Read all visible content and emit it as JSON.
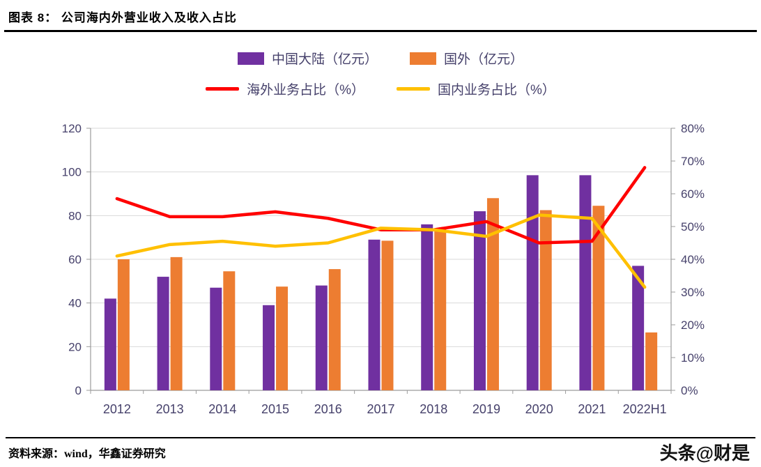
{
  "header": {
    "title": "图表 8：  公司海内外营业收入及收入占比"
  },
  "footer": {
    "source": "资料来源：wind，华鑫证券研究",
    "watermark": "头条@财是"
  },
  "chart_data": {
    "type": "bar",
    "subtype": "grouped-bars-with-lines",
    "categories": [
      "2012",
      "2013",
      "2014",
      "2015",
      "2016",
      "2017",
      "2018",
      "2019",
      "2020",
      "2021",
      "2022H1"
    ],
    "bar_series": [
      {
        "name": "中国大陆（亿元）",
        "color": "#7030A0",
        "axis": "left",
        "values": [
          42,
          52,
          47,
          39,
          48,
          69,
          76,
          82,
          98.5,
          98.5,
          57
        ]
      },
      {
        "name": "国外（亿元）",
        "color": "#ED7D31",
        "axis": "left",
        "values": [
          60,
          61,
          54.5,
          47.5,
          55.5,
          68.5,
          74,
          88,
          82.5,
          84.5,
          26.5
        ]
      }
    ],
    "line_series": [
      {
        "name": "海外业务占比（%）",
        "color": "#FF0000",
        "axis": "right",
        "values": [
          58.5,
          53,
          53,
          54.5,
          52.5,
          49,
          49,
          51.5,
          45,
          45.5,
          68
        ]
      },
      {
        "name": "国内业务占比（%）",
        "color": "#FFC000",
        "axis": "right",
        "values": [
          41,
          44.5,
          45.5,
          44,
          45,
          49.5,
          49,
          47,
          53.5,
          52.5,
          31.5
        ]
      }
    ],
    "left_axis": {
      "min": 0,
      "max": 120,
      "step": 20,
      "ticks": [
        "0",
        "20",
        "40",
        "60",
        "80",
        "100",
        "120"
      ]
    },
    "right_axis": {
      "min": 0,
      "max": 80,
      "step": 10,
      "ticks": [
        "0%",
        "10%",
        "20%",
        "30%",
        "40%",
        "50%",
        "60%",
        "70%",
        "80%"
      ]
    },
    "grid": true,
    "legend_position": "top",
    "text_color": "#46416B",
    "grid_color": "#D9D9D9",
    "axis_color": "#9B9B9B"
  }
}
